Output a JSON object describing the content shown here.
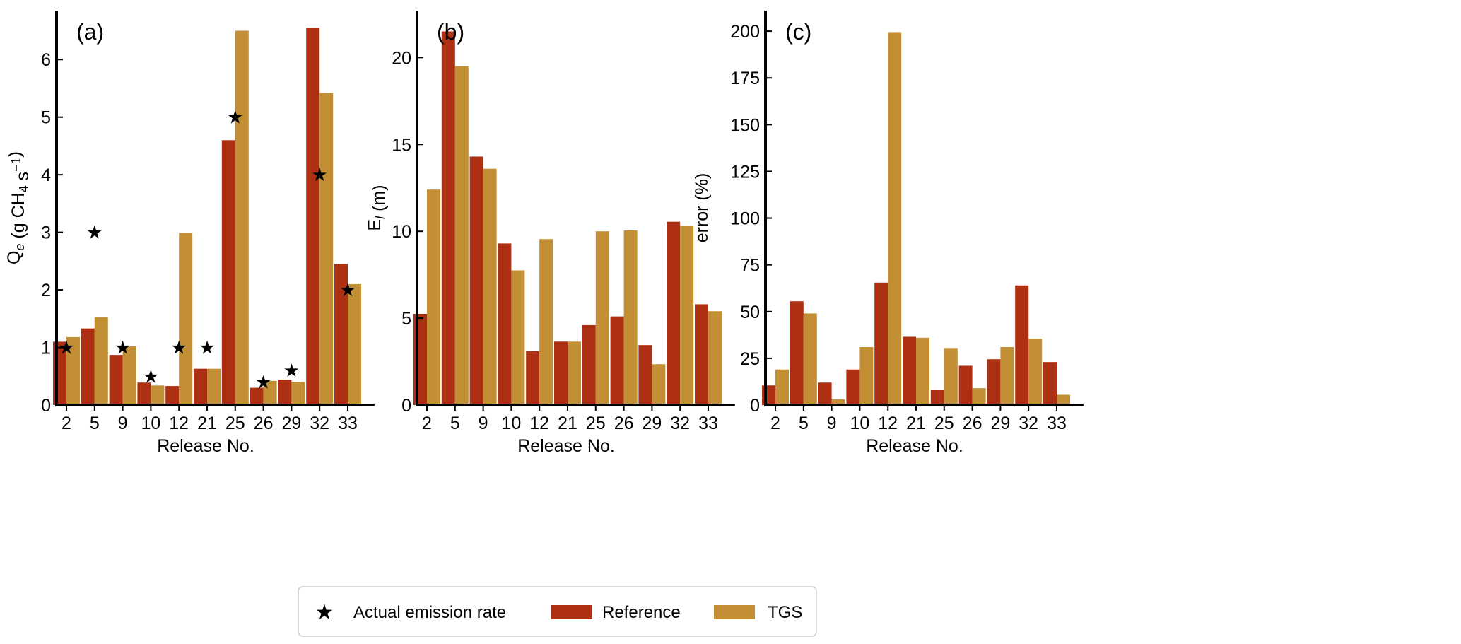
{
  "legend": {
    "actual": "Actual emission rate",
    "reference": "Reference",
    "tgs": "TGS"
  },
  "colors": {
    "reference": "#ad3013",
    "tgs": "#c28f34",
    "actual": "#000000"
  },
  "chart_data": [
    {
      "type": "bar",
      "panel_label": "(a)",
      "xlabel": "Release No.",
      "ylabel": "Q_e (g CH4 s^-1)",
      "categories": [
        "2",
        "5",
        "9",
        "10",
        "12",
        "21",
        "25",
        "26",
        "29",
        "32",
        "33"
      ],
      "ylim": [
        0,
        6.85
      ],
      "yticks": [
        0,
        1,
        2,
        3,
        4,
        5,
        6
      ],
      "series": [
        {
          "name": "Reference",
          "values": [
            1.1,
            1.33,
            0.87,
            0.39,
            0.33,
            0.63,
            4.6,
            0.3,
            0.44,
            6.55,
            2.45
          ]
        },
        {
          "name": "TGS",
          "values": [
            1.18,
            1.53,
            1.02,
            0.34,
            2.99,
            0.63,
            6.5,
            0.42,
            0.4,
            5.42,
            2.1
          ]
        },
        {
          "name": "Actual emission rate",
          "marker": "star",
          "values": [
            1,
            3,
            1,
            0.5,
            1,
            1,
            5,
            0.4,
            0.6,
            4,
            2
          ]
        }
      ]
    },
    {
      "type": "bar",
      "panel_label": "(b)",
      "xlabel": "Release No.",
      "ylabel": "E_l (m)",
      "categories": [
        "2",
        "5",
        "9",
        "10",
        "12",
        "21",
        "25",
        "26",
        "29",
        "32",
        "33"
      ],
      "ylim": [
        0,
        22.7
      ],
      "yticks": [
        0,
        5,
        10,
        15,
        20
      ],
      "series": [
        {
          "name": "Reference",
          "values": [
            5.25,
            21.5,
            14.3,
            9.3,
            3.1,
            3.65,
            4.6,
            5.1,
            3.45,
            10.55,
            5.8
          ]
        },
        {
          "name": "TGS",
          "values": [
            12.4,
            19.5,
            13.6,
            7.75,
            9.55,
            3.65,
            10.0,
            10.05,
            2.35,
            10.3,
            5.4
          ]
        }
      ]
    },
    {
      "type": "bar",
      "panel_label": "(c)",
      "xlabel": "Release No.",
      "ylabel": "error (%)",
      "categories": [
        "2",
        "5",
        "9",
        "10",
        "12",
        "21",
        "25",
        "26",
        "29",
        "32",
        "33"
      ],
      "ylim": [
        0,
        211
      ],
      "yticks": [
        0,
        25,
        50,
        75,
        100,
        125,
        150,
        175,
        200
      ],
      "series": [
        {
          "name": "Reference",
          "values": [
            10.5,
            55.5,
            12,
            19,
            65.5,
            36.5,
            8,
            21,
            24.5,
            64,
            23
          ]
        },
        {
          "name": "TGS",
          "values": [
            19,
            49,
            3,
            31,
            199.5,
            36,
            30.5,
            9,
            31,
            35.5,
            5.5
          ]
        }
      ]
    }
  ]
}
